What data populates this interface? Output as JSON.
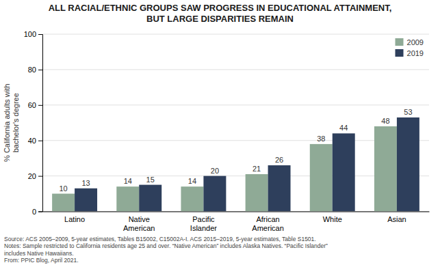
{
  "chart_data": {
    "type": "bar",
    "title": "ALL RACIAL/ETHNIC GROUPS SAW PROGRESS IN EDUCATIONAL ATTAINMENT,\nBUT LARGE DISPARITIES REMAIN",
    "categories": [
      "Latino",
      "Native\nAmerican",
      "Pacific\nIslander",
      "African\nAmerican",
      "White",
      "Asian"
    ],
    "series": [
      {
        "name": "2009",
        "color": "#8faa96",
        "values": [
          10,
          14,
          14,
          21,
          38,
          48
        ]
      },
      {
        "name": "2019",
        "color": "#2e3f5c",
        "values": [
          13,
          15,
          20,
          26,
          44,
          53
        ]
      }
    ],
    "ylabel": "% California adults with\nbachelor's degree",
    "ylim": [
      0,
      100
    ],
    "yticks": [
      0,
      20,
      40,
      60,
      80,
      100
    ],
    "grid": true,
    "legend": "upper right",
    "data_labels": true,
    "annotations": [
      "Source: ACS 2005–2009, 5-year estimates, Tables B15002, C15002A-I. ACS 2015–2019, 5-year estimates, Table S1501.\nNotes: Sample restricted to California residents age 25 and over. “Native American” includes Alaska Natives. “Pacific Islander”\nincludes Native Hawaiians.\nFrom: PPIC Blog, April 2021."
    ]
  }
}
